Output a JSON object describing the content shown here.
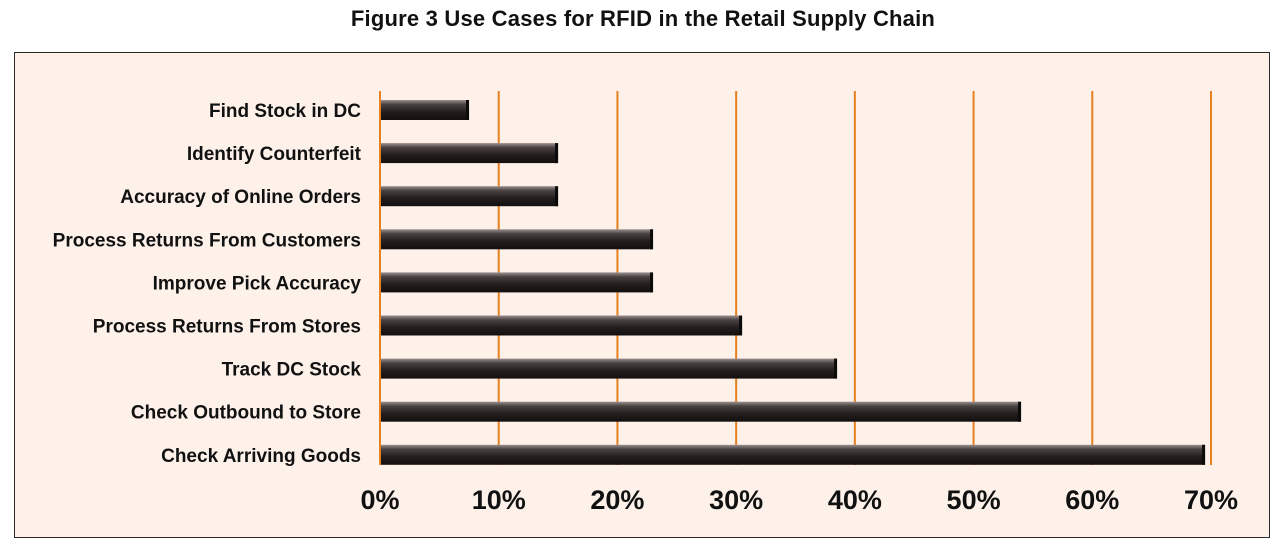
{
  "chart_data": {
    "type": "bar",
    "orientation": "horizontal",
    "title": "Figure 3 Use Cases for RFID in the Retail Supply Chain",
    "xlabel": "",
    "ylabel": "",
    "categories": [
      "Find Stock in DC",
      "Identify Counterfeit",
      "Accuracy of Online Orders",
      "Process Returns From Customers",
      "Improve Pick Accuracy",
      "Process Returns From Stores",
      "Track DC Stock",
      "Check Outbound to Store",
      "Check Arriving Goods"
    ],
    "values": [
      7.5,
      15,
      15,
      23,
      23,
      30.5,
      38.5,
      54,
      69.5
    ],
    "xlim": [
      0,
      70
    ],
    "x_ticks": [
      "0%",
      "10%",
      "20%",
      "30%",
      "40%",
      "50%",
      "60%",
      "70%"
    ],
    "grid": "vertical",
    "legend": "none",
    "colors": {
      "bar": "#2b2424",
      "bar_highlight": "#8a8080",
      "gridline": "#e8801f",
      "background": "#fdf1ea",
      "frame": "#2a2a2a"
    }
  }
}
